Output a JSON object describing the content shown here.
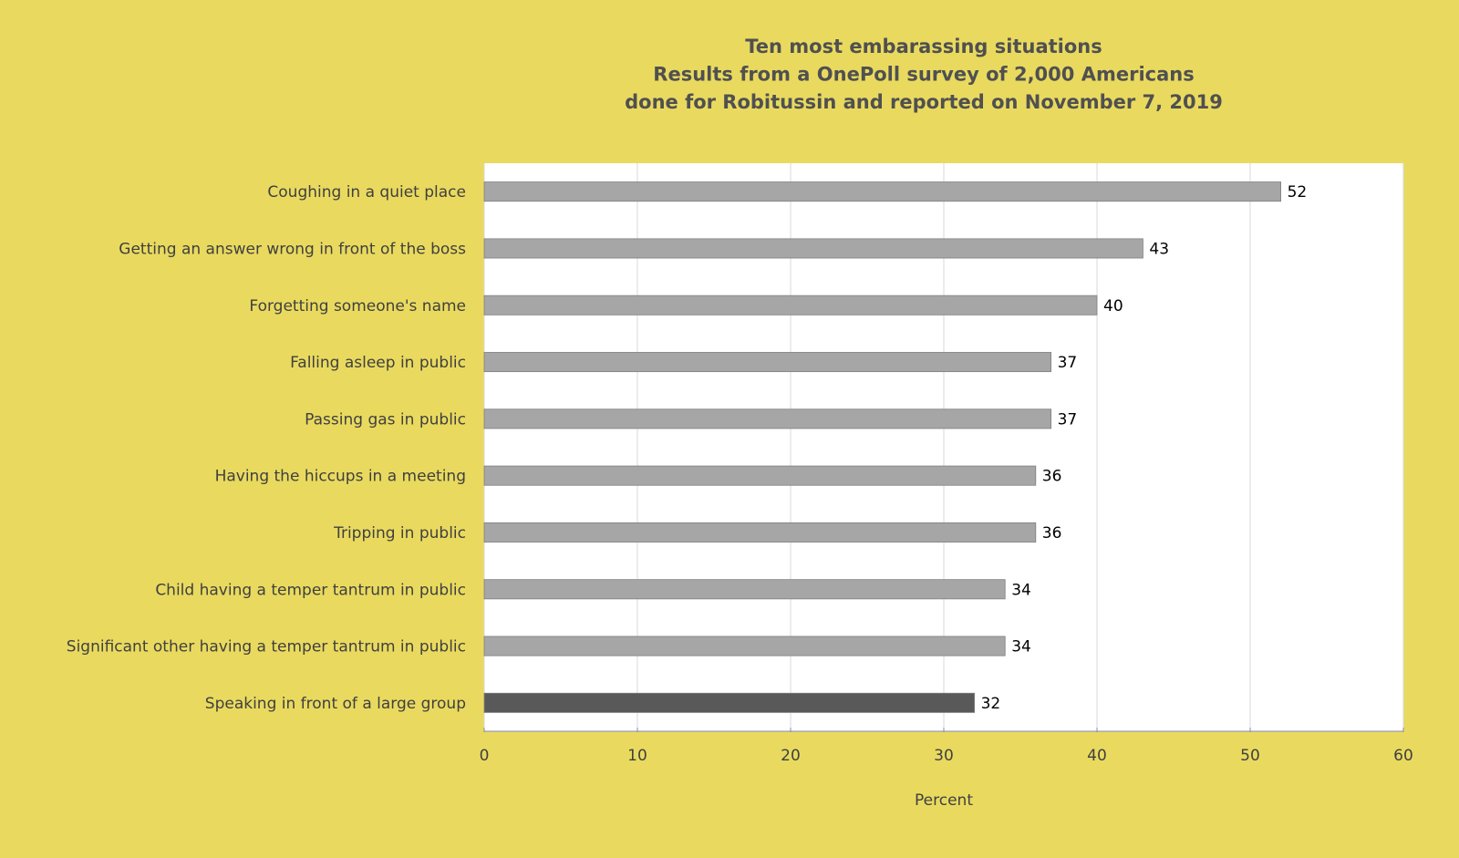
{
  "chart_data": {
    "type": "barh",
    "title": [
      "Ten most embarassing situations",
      "Results from a OnePoll survey of 2,000 Americans",
      "done for Robitussin and reported on November 7, 2019"
    ],
    "categories": [
      "Coughing in a quiet place",
      "Getting an answer wrong in front of the boss",
      "Forgetting someone's name",
      "Falling asleep in public",
      "Passing gas in public",
      "Having the hiccups in a meeting",
      "Tripping in public",
      "Child having a temper tantrum in public",
      "Significant other having a temper tantrum in public",
      "Speaking in front of a large group"
    ],
    "values": [
      52,
      43,
      40,
      37,
      37,
      36,
      36,
      34,
      34,
      32
    ],
    "colors": [
      "#a6a6a6",
      "#a6a6a6",
      "#a6a6a6",
      "#a6a6a6",
      "#a6a6a6",
      "#a6a6a6",
      "#a6a6a6",
      "#a6a6a6",
      "#a6a6a6",
      "#595959"
    ],
    "xlabel": "Percent",
    "xlim": [
      0,
      60
    ],
    "xticks": [
      0,
      10,
      20,
      30,
      40,
      50,
      60
    ],
    "grid": true
  }
}
